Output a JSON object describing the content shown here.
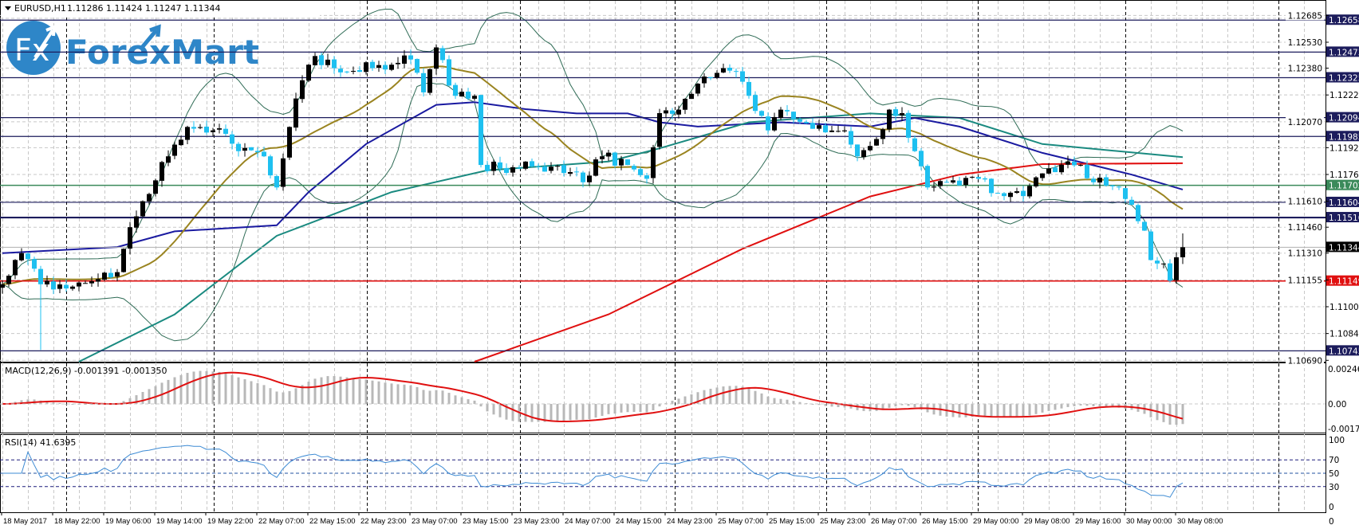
{
  "header": {
    "symbol": "EURUSD,H1",
    "ohlc": "1.11286 1.11424 1.11247 1.11344",
    "dropdown_icon": "triangle-down-icon"
  },
  "logo": {
    "badge": "Fx",
    "text": "ForexMart",
    "color": "#2e86c8"
  },
  "colors": {
    "bull": "#000000",
    "bear": "#1ec0f0",
    "ma_fast": "#9a8420",
    "ma_blue": "#1a1aa0",
    "ma_teal": "#1a8a80",
    "ma_red": "#e01010",
    "bands": "#2e6b55",
    "navy": "#1c1c5c",
    "green_level": "#3a8a5a",
    "macd_hist": "#b8b8b8",
    "macd_signal": "#e01010",
    "rsi": "#3d8bd4"
  },
  "chart_data": {
    "type": "candlestick",
    "symbol": "EURUSD",
    "timeframe": "H1",
    "ylim": [
      1.10682,
      1.12774
    ],
    "price_ticks": [
      "1.12685",
      "1.12530",
      "1.12380",
      "1.12225",
      "1.12070",
      "1.11920",
      "1.11765",
      "1.11610",
      "1.11460",
      "1.11310",
      "1.11155",
      "1.11000",
      "1.10845",
      "1.10690"
    ],
    "levels": [
      {
        "price": "1.12658",
        "kind": "navy"
      },
      {
        "price": "1.12473",
        "kind": "navy"
      },
      {
        "price": "1.12325",
        "kind": "navy"
      },
      {
        "price": "1.12094",
        "kind": "navy"
      },
      {
        "price": "1.11985",
        "kind": "navy"
      },
      {
        "price": "1.11702",
        "kind": "green"
      },
      {
        "price": "1.11604",
        "kind": "navy"
      },
      {
        "price": "1.11516",
        "kind": "navy-thick"
      },
      {
        "price": "1.11344",
        "kind": "current"
      },
      {
        "price": "1.11149",
        "kind": "red"
      },
      {
        "price": "1.10745",
        "kind": "navy"
      }
    ],
    "bar_count": 186,
    "close_keypoints": [
      [
        0,
        1.1113
      ],
      [
        3,
        1.1131
      ],
      [
        5,
        1.1122
      ],
      [
        6,
        1.1113
      ],
      [
        8,
        1.111
      ],
      [
        12,
        1.1114
      ],
      [
        15,
        1.1116
      ],
      [
        18,
        1.112
      ],
      [
        20,
        1.1146
      ],
      [
        22,
        1.1161
      ],
      [
        26,
        1.1187
      ],
      [
        29,
        1.1204
      ],
      [
        33,
        1.1202
      ],
      [
        35,
        1.12
      ],
      [
        37,
        1.119
      ],
      [
        41,
        1.1187
      ],
      [
        43,
        1.1169
      ],
      [
        45,
        1.1204
      ],
      [
        47,
        1.1231
      ],
      [
        49,
        1.1245
      ],
      [
        52,
        1.1238
      ],
      [
        58,
        1.1238
      ],
      [
        61,
        1.124
      ],
      [
        64,
        1.1243
      ],
      [
        66,
        1.1224
      ],
      [
        68,
        1.125
      ],
      [
        71,
        1.1222
      ],
      [
        74,
        1.1222
      ],
      [
        75,
        1.1182
      ],
      [
        78,
        1.118
      ],
      [
        86,
        1.1181
      ],
      [
        90,
        1.1178
      ],
      [
        91,
        1.1172
      ],
      [
        94,
        1.1187
      ],
      [
        98,
        1.1182
      ],
      [
        101,
        1.1174
      ],
      [
        103,
        1.1212
      ],
      [
        106,
        1.1214
      ],
      [
        109,
        1.1229
      ],
      [
        113,
        1.1238
      ],
      [
        115,
        1.1236
      ],
      [
        117,
        1.1222
      ],
      [
        120,
        1.1202
      ],
      [
        122,
        1.1214
      ],
      [
        125,
        1.1207
      ],
      [
        128,
        1.1205
      ],
      [
        132,
        1.1202
      ],
      [
        134,
        1.1187
      ],
      [
        137,
        1.1197
      ],
      [
        139,
        1.1214
      ],
      [
        141,
        1.1212
      ],
      [
        143,
        1.119
      ],
      [
        145,
        1.1169
      ],
      [
        148,
        1.1172
      ],
      [
        153,
        1.1174
      ],
      [
        157,
        1.1164
      ],
      [
        160,
        1.1164
      ],
      [
        164,
        1.118
      ],
      [
        167,
        1.1184
      ],
      [
        169,
        1.1182
      ],
      [
        171,
        1.1172
      ],
      [
        175,
        1.1169
      ],
      [
        177,
        1.1159
      ],
      [
        179,
        1.1144
      ],
      [
        180,
        1.1127
      ],
      [
        181,
        1.1125
      ],
      [
        182,
        1.1125
      ],
      [
        183,
        1.1115
      ],
      [
        184,
        1.11286
      ],
      [
        185,
        1.11344
      ]
    ],
    "low_overrides": [
      [
        6,
        1.1075
      ]
    ],
    "last_bar": {
      "open": 1.11286,
      "high": 1.11424,
      "low": 1.11247,
      "close": 1.11344
    },
    "ma_lines": [
      {
        "name": "ma_blue",
        "points": [
          [
            0,
            1.1131
          ],
          [
            18,
            1.11345
          ],
          [
            27,
            1.11436
          ],
          [
            43,
            1.11471
          ],
          [
            48,
            1.11663
          ],
          [
            57,
            1.11941
          ],
          [
            68,
            1.12168
          ],
          [
            74,
            1.12183
          ],
          [
            82,
            1.12143
          ],
          [
            90,
            1.12118
          ],
          [
            98,
            1.12118
          ],
          [
            103,
            1.12067
          ],
          [
            109,
            1.12042
          ],
          [
            122,
            1.12067
          ],
          [
            136,
            1.12042
          ],
          [
            143,
            1.12092
          ],
          [
            150,
            1.12042
          ],
          [
            163,
            1.1189
          ],
          [
            177,
            1.11764
          ],
          [
            185,
            1.11678
          ]
        ]
      },
      {
        "name": "ma_teal",
        "points": [
          [
            12,
            1.10501
          ],
          [
            27,
            1.10956
          ],
          [
            43,
            1.1141
          ],
          [
            61,
            1.11663
          ],
          [
            76,
            1.11789
          ],
          [
            95,
            1.1184
          ],
          [
            103,
            1.11916
          ],
          [
            117,
            1.12067
          ],
          [
            136,
            1.12118
          ],
          [
            150,
            1.12092
          ],
          [
            163,
            1.11941
          ],
          [
            185,
            1.11865
          ]
        ]
      },
      {
        "name": "ma_red",
        "points": [
          [
            74,
            1.10501
          ],
          [
            95,
            1.10956
          ],
          [
            116,
            1.11335
          ],
          [
            136,
            1.11638
          ],
          [
            150,
            1.11764
          ],
          [
            163,
            1.11825
          ],
          [
            185,
            1.1183
          ]
        ]
      }
    ],
    "macd": {
      "label": "MACD(12,26,9) -0.001391 -0.001350",
      "ticks": [
        "0.002462",
        "0.00",
        "-0.001758"
      ],
      "range": [
        -0.001758,
        0.002462
      ]
    },
    "rsi": {
      "label": "RSI(14) 41.6395",
      "ticks": [
        "100",
        "70",
        "50",
        "30",
        "0"
      ],
      "levels": [
        70,
        50,
        30
      ]
    },
    "time_labels": [
      "18 May 2017",
      "18 May 22:00",
      "19 May 06:00",
      "19 May 14:00",
      "19 May 22:00",
      "22 May 07:00",
      "22 May 15:00",
      "22 May 23:00",
      "23 May 07:00",
      "23 May 15:00",
      "23 May 23:00",
      "24 May 07:00",
      "24 May 15:00",
      "24 May 23:00",
      "25 May 07:00",
      "25 May 15:00",
      "25 May 23:00",
      "26 May 07:00",
      "26 May 15:00",
      "29 May 00:00",
      "29 May 08:00",
      "29 May 16:00",
      "30 May 00:00",
      "30 May 08:00"
    ],
    "volume_axis_tick": "0"
  }
}
